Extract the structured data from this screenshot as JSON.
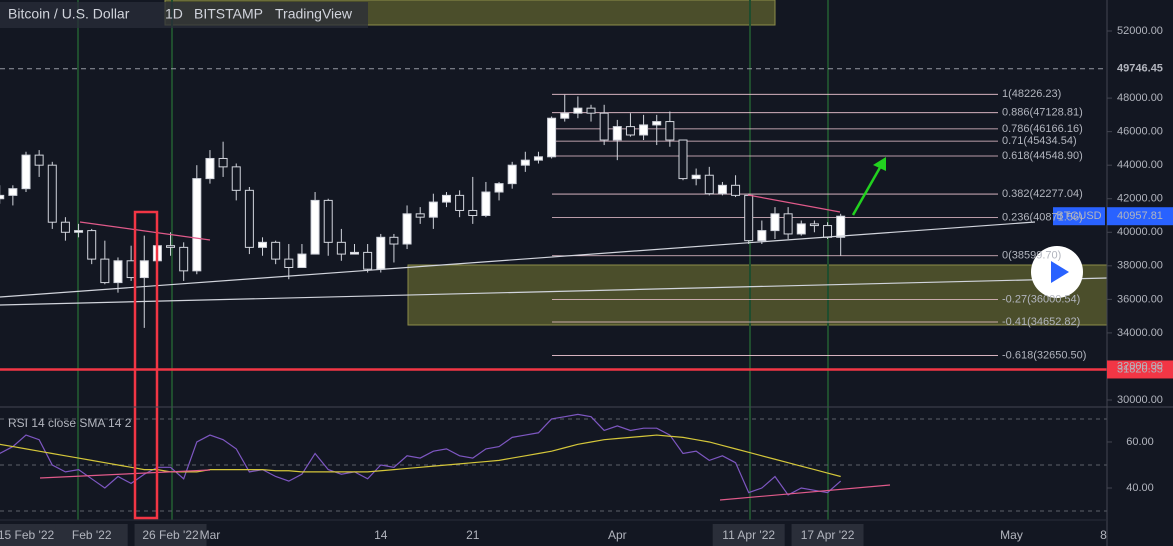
{
  "chart_data": [
    {
      "type": "candlestick",
      "title": "Bitcoin / U.S. Dollar",
      "interval": "1D",
      "exchange": "BITSTAMP",
      "source": "TradingView",
      "symbol": "BTCUSD",
      "categories": [
        null,
        null,
        "15 Feb '22",
        null,
        null,
        null,
        null,
        "Feb '22",
        null,
        null,
        null,
        null,
        null,
        "26 Feb '22",
        null,
        null,
        "Mar",
        null,
        null,
        null,
        null,
        null,
        null,
        null,
        null,
        null,
        null,
        null,
        null,
        "14",
        null,
        null,
        null,
        null,
        null,
        null,
        "21",
        null,
        null,
        null,
        null,
        null,
        null,
        null,
        null,
        null,
        null,
        "Apr",
        null,
        null,
        null,
        null,
        null,
        null,
        null,
        null,
        null,
        "11 Apr '22",
        null,
        null,
        null,
        null,
        null,
        "17 Apr '22",
        null,
        null,
        null,
        null,
        null,
        null,
        null,
        null,
        null,
        null,
        null,
        null,
        null,
        "May",
        null,
        null,
        null,
        null,
        null,
        null,
        "8"
      ],
      "open": [
        42000,
        42200,
        42600,
        44600,
        44000,
        40600,
        40000,
        40100,
        38400,
        37000,
        38300,
        37300,
        38300,
        39200,
        39100,
        37700,
        43200,
        44400,
        43900,
        42500,
        39100,
        39400,
        38400,
        37900,
        38700,
        41900,
        39400,
        38700,
        38800,
        37800,
        39700,
        39300,
        41100,
        40900,
        41800,
        42200,
        41300,
        41000,
        42400,
        42900,
        44000,
        44300,
        44500,
        46800,
        47100,
        47400,
        47100,
        45500,
        46300,
        45800,
        46400,
        46600,
        45500,
        43200,
        43400,
        42300,
        42800,
        42200,
        39500,
        40100,
        41100,
        39900,
        40500,
        40400,
        39700,
        null,
        null,
        null,
        null,
        null,
        null,
        null,
        null,
        null,
        null,
        null,
        null,
        null,
        null,
        null,
        null,
        null,
        null,
        null,
        null
      ],
      "high": [
        42800,
        42800,
        44800,
        44900,
        44200,
        40900,
        40500,
        40200,
        39500,
        38500,
        39200,
        39800,
        39700,
        40000,
        39400,
        44000,
        44900,
        45400,
        44100,
        42700,
        39700,
        39500,
        39300,
        39300,
        42400,
        42000,
        40200,
        39300,
        39300,
        39900,
        39900,
        41600,
        41500,
        42300,
        42400,
        42500,
        43300,
        43000,
        43000,
        44200,
        44800,
        44800,
        46900,
        48200,
        48100,
        47600,
        47600,
        46700,
        47100,
        47000,
        47000,
        47200,
        45500,
        43800,
        43900,
        43000,
        43400,
        42300,
        40700,
        41500,
        41500,
        40700,
        40700,
        40600,
        41100,
        null,
        null,
        null,
        null,
        null,
        null,
        null,
        null,
        null,
        null,
        null,
        null,
        null,
        null,
        null,
        null,
        null,
        null,
        null,
        null
      ],
      "low": [
        41700,
        41600,
        42400,
        43300,
        40200,
        39500,
        39700,
        38100,
        36900,
        36400,
        37100,
        34300,
        38000,
        38600,
        37100,
        37500,
        42900,
        43300,
        41900,
        38700,
        38600,
        38100,
        37200,
        37900,
        38700,
        38600,
        38300,
        38700,
        37600,
        37600,
        38200,
        39000,
        40500,
        40200,
        41500,
        40900,
        40500,
        40900,
        41900,
        42600,
        43600,
        44100,
        44400,
        46600,
        46800,
        46600,
        45200,
        44300,
        45700,
        45500,
        45200,
        45100,
        43100,
        42800,
        42200,
        42200,
        42100,
        39300,
        39300,
        39600,
        39600,
        39800,
        40000,
        39600,
        38600,
        null,
        null,
        null,
        null,
        null,
        null,
        null,
        null,
        null,
        null,
        null,
        null,
        null,
        null,
        null,
        null,
        null,
        null,
        null,
        null
      ],
      "close": [
        42200,
        42600,
        44600,
        44000,
        40600,
        40000,
        40100,
        38400,
        37000,
        38300,
        37300,
        38300,
        39200,
        39100,
        37700,
        43200,
        44400,
        43900,
        42500,
        39100,
        39400,
        38400,
        37900,
        38700,
        41900,
        39400,
        38700,
        38800,
        37800,
        39700,
        39300,
        41100,
        40900,
        41800,
        42200,
        41300,
        41000,
        42400,
        42900,
        44000,
        44300,
        44500,
        46800,
        47100,
        47400,
        47100,
        45500,
        46300,
        45800,
        46400,
        46600,
        45500,
        43200,
        43400,
        42300,
        42800,
        42200,
        39500,
        40100,
        41100,
        39900,
        40500,
        40400,
        39700,
        40957.81,
        null,
        null,
        null,
        null,
        null,
        null,
        null,
        null,
        null,
        null,
        null,
        null,
        null,
        null,
        null,
        null,
        null,
        null,
        null,
        null
      ],
      "up_color": "#ffffff",
      "down_color": "#131722",
      "ylim": [
        29583,
        53848
      ],
      "yticks": [
        {
          "value": 30000,
          "label": "30000.00"
        },
        {
          "value": 32000,
          "label": "32000.00"
        },
        {
          "value": 34000,
          "label": "34000.00"
        },
        {
          "value": 36000,
          "label": "36000.00"
        },
        {
          "value": 38000,
          "label": "38000.00"
        },
        {
          "value": 40000,
          "label": "40000.00"
        },
        {
          "value": 42000,
          "label": "42000.00"
        },
        {
          "value": 44000,
          "label": "44000.00"
        },
        {
          "value": 46000,
          "label": "46000.00"
        },
        {
          "value": 48000,
          "label": "48000.00"
        },
        {
          "value": 52000,
          "label": "52000.00"
        }
      ],
      "price_lines": [
        {
          "value": 49746.45,
          "color": "#9598a1"
        },
        {
          "value": 31820.35,
          "color": "#f23645"
        }
      ],
      "fib_levels": [
        {
          "value": 48226.23,
          "label": "1(48226.23)"
        },
        {
          "value": 47128.81,
          "label": "0.886(47128.81)"
        },
        {
          "value": 46166.16,
          "label": "0.786(46166.16)"
        },
        {
          "value": 45434.54,
          "label": "0.71(45434.54)"
        },
        {
          "value": 44548.9,
          "label": "0.618(44548.90)"
        },
        {
          "value": 42277.04,
          "label": "0.382(42277.04)"
        },
        {
          "value": 40871.56,
          "label": "0.236(40871.56)"
        },
        {
          "value": 38599.7,
          "label": "0(38599.70)"
        },
        {
          "value": 36000.54,
          "label": "-0.27(36000.54)"
        },
        {
          "value": 34652.82,
          "label": "-0.41(34652.82)"
        },
        {
          "value": 32650.5,
          "label": "-0.618(32650.50)"
        }
      ]
    },
    {
      "type": "line",
      "title": "RSI 14 close SMA 14 2",
      "series": [
        {
          "color": "#7e57c2",
          "values": [
            55,
            58,
            63,
            61,
            50,
            47,
            48,
            44,
            40,
            45,
            42,
            46,
            49,
            49,
            44,
            60,
            63,
            61,
            57,
            47,
            48,
            45,
            43,
            46,
            55,
            48,
            46,
            47,
            44,
            50,
            49,
            54,
            53,
            56,
            57,
            54,
            53,
            57,
            58,
            62,
            63,
            64,
            70,
            71,
            72,
            71,
            65,
            67,
            65,
            66,
            66,
            63,
            55,
            56,
            52,
            54,
            51,
            38,
            40,
            45,
            37,
            40,
            39,
            38,
            43,
            null,
            null,
            null,
            null,
            null,
            null,
            null,
            null,
            null,
            null,
            null,
            null,
            null,
            null,
            null,
            null,
            null,
            null,
            null,
            null
          ]
        },
        {
          "color": "#d4c63a",
          "values": [
            59,
            58,
            57,
            56,
            55,
            54,
            53,
            52,
            51,
            50,
            49,
            48,
            48,
            47,
            47,
            47,
            48,
            48,
            48,
            48,
            48,
            47.5,
            47.5,
            47,
            47,
            47,
            47,
            47,
            47,
            47.5,
            48,
            48.5,
            49,
            49.5,
            50,
            50.5,
            51,
            51.5,
            52,
            53,
            54,
            55,
            56,
            57.5,
            59,
            60,
            61,
            61.5,
            62,
            62.5,
            63,
            62.5,
            62,
            61,
            60,
            58.5,
            57,
            55.5,
            54,
            52.5,
            51,
            49.5,
            48,
            46.5,
            45,
            null,
            null,
            null,
            null,
            null,
            null,
            null,
            null,
            null,
            null,
            null,
            null,
            null,
            null,
            null,
            null,
            null,
            null,
            null,
            null
          ]
        }
      ],
      "ylim": [
        26.1,
        75.2
      ],
      "yticks": [
        {
          "value": 40,
          "label": "40.00"
        },
        {
          "value": 60,
          "label": "60.00"
        }
      ],
      "levels": [
        30,
        50,
        70
      ]
    }
  ]
}
